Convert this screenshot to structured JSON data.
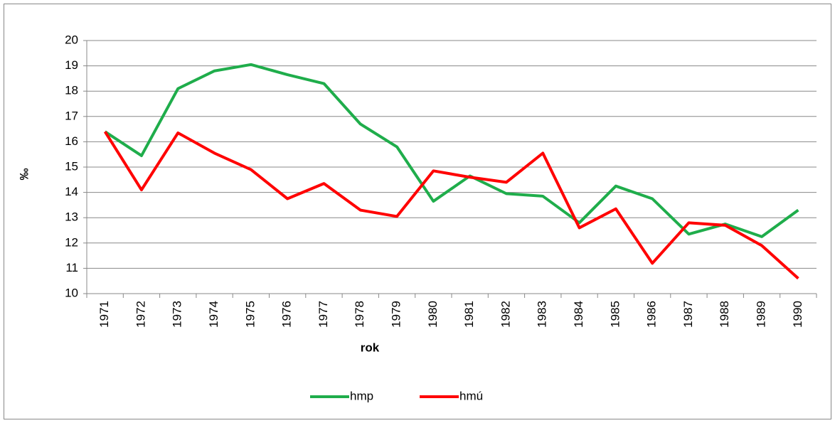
{
  "chart_data": {
    "type": "line",
    "x_label": "rok",
    "y_label": "‰",
    "categories": [
      "1971",
      "1972",
      "1973",
      "1974",
      "1975",
      "1976",
      "1977",
      "1978",
      "1979",
      "1980",
      "1981",
      "1982",
      "1983",
      "1984",
      "1985",
      "1986",
      "1987",
      "1988",
      "1989",
      "1990"
    ],
    "series": [
      {
        "name": "hmp",
        "color": "#1fad4b",
        "values": [
          16.4,
          15.45,
          18.1,
          18.8,
          19.05,
          18.65,
          18.3,
          16.7,
          15.8,
          13.65,
          14.65,
          13.95,
          13.85,
          12.8,
          14.25,
          13.75,
          12.35,
          12.75,
          12.25,
          13.3
        ]
      },
      {
        "name": "hmú",
        "color": "#ff0000",
        "values": [
          16.4,
          14.1,
          16.35,
          15.55,
          14.9,
          13.75,
          14.35,
          13.3,
          13.05,
          14.85,
          14.6,
          14.4,
          15.55,
          12.6,
          13.35,
          11.2,
          12.8,
          12.7,
          11.9,
          10.6
        ]
      }
    ],
    "ylim": [
      10,
      20
    ],
    "yticks": [
      10,
      11,
      12,
      13,
      14,
      15,
      16,
      17,
      18,
      19,
      20
    ],
    "grid": true,
    "legend": "bottom"
  }
}
